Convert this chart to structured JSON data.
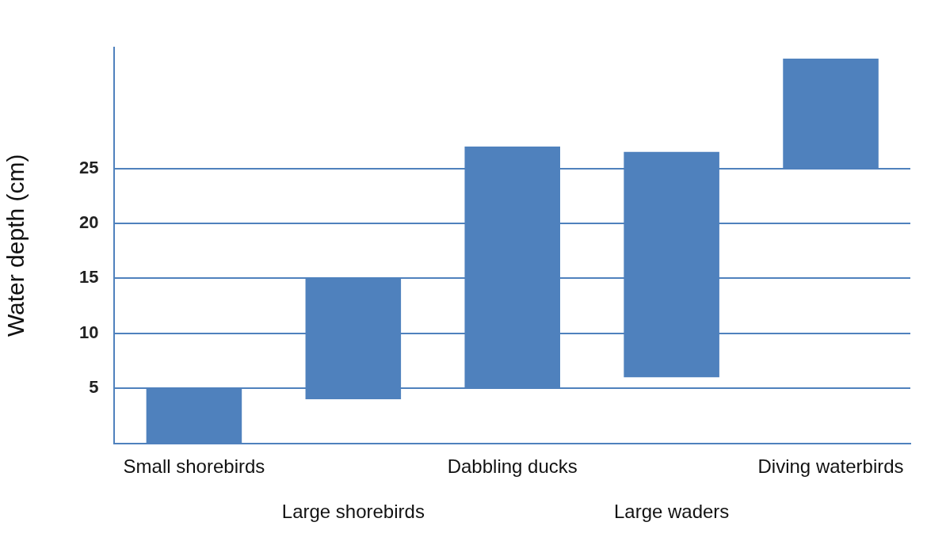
{
  "chart_data": {
    "type": "bar",
    "ylabel": "Water depth (cm)",
    "categories": [
      "Small shorebirds",
      "Large shorebirds",
      "Dabbling ducks",
      "Large waders",
      "Diving waterbirds"
    ],
    "base": [
      0,
      4,
      5,
      6,
      25
    ],
    "values": [
      5,
      11,
      22,
      20.5,
      10
    ],
    "color": "#4f81bd",
    "ylim": [
      0,
      36
    ],
    "yticks": [
      5,
      10,
      15,
      20,
      25
    ],
    "grid": "y",
    "legend": false
  }
}
